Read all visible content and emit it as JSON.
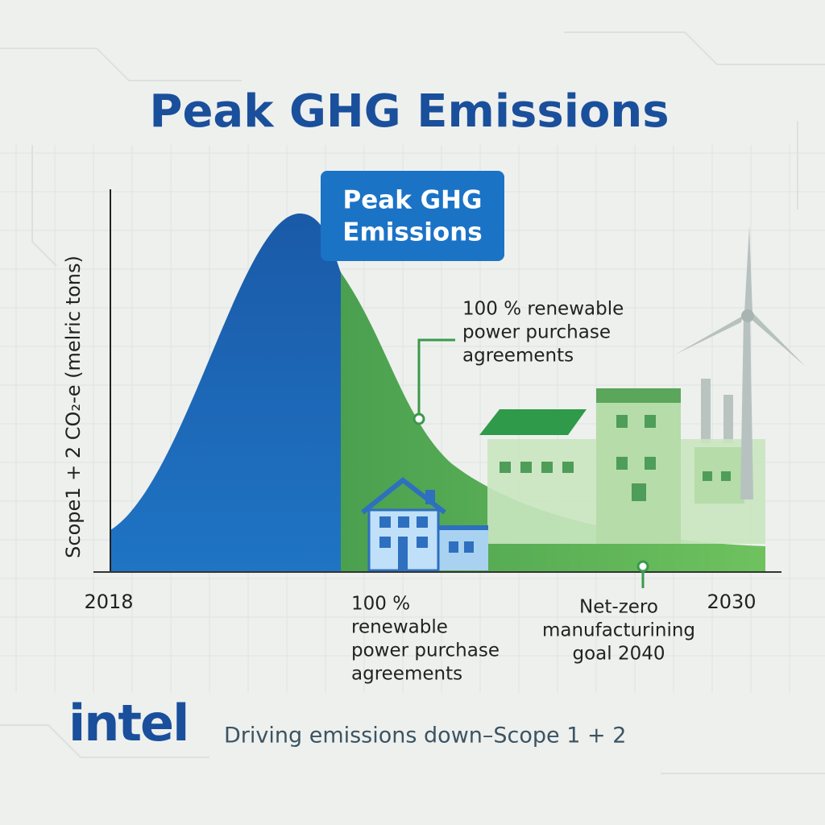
{
  "title": "Peak GHG Emissions",
  "callout": {
    "lines": [
      "Peak GHG",
      "Emissions"
    ]
  },
  "y_axis_label": "Scope1 + 2 CO₂-e (melric tons)",
  "x_labels": [
    "2018",
    "2030"
  ],
  "annotations": [
    {
      "lines": [
        "100 % renewable",
        "power purchase",
        "agreements"
      ]
    },
    {
      "lines": [
        "100 %",
        "renewable",
        "power purchase",
        "agreements"
      ]
    },
    {
      "lines": [
        "Net-zero",
        "manufacturining",
        "goal 2040"
      ]
    }
  ],
  "brand": "intel",
  "tagline": "Driving emissions down–Scope 1 + 2"
}
